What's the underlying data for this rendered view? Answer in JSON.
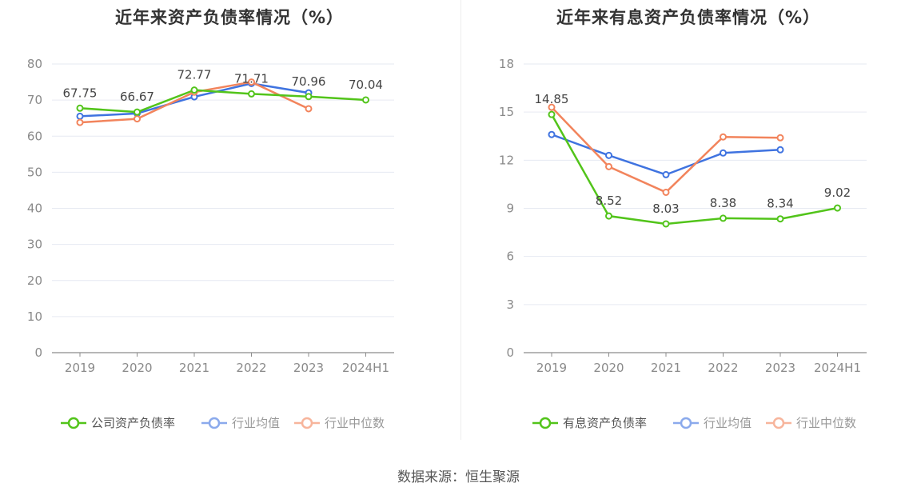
{
  "source": "数据来源：恒生聚源",
  "chart_data": [
    {
      "type": "line",
      "title": "近年来资产负债率情况（%）",
      "categories": [
        "2019",
        "2020",
        "2021",
        "2022",
        "2023",
        "2024H1"
      ],
      "ylim": [
        0,
        80
      ],
      "yticks": [
        0,
        10,
        20,
        30,
        40,
        50,
        60,
        70,
        80
      ],
      "grid": true,
      "legend_position": "bottom",
      "series": [
        {
          "name": "公司资产负债率",
          "color": "#52c41a",
          "values": [
            67.75,
            66.67,
            72.77,
            71.71,
            70.96,
            70.04
          ],
          "labels": [
            "67.75",
            "66.67",
            "72.77",
            "71.71",
            "70.96",
            "70.04"
          ]
        },
        {
          "name": "行业均值",
          "color": "#3f73e0",
          "values": [
            65.5,
            66.3,
            70.9,
            74.6,
            72.0,
            null
          ]
        },
        {
          "name": "行业中位数",
          "color": "#f2845c",
          "values": [
            63.8,
            64.8,
            72.2,
            75.0,
            67.6,
            null
          ]
        }
      ]
    },
    {
      "type": "line",
      "title": "近年来有息资产负债率情况（%）",
      "categories": [
        "2019",
        "2020",
        "2021",
        "2022",
        "2023",
        "2024H1"
      ],
      "ylim": [
        0,
        18
      ],
      "yticks": [
        0,
        3,
        6,
        9,
        12,
        15,
        18
      ],
      "grid": true,
      "legend_position": "bottom",
      "series": [
        {
          "name": "有息资产负债率",
          "color": "#52c41a",
          "values": [
            14.85,
            8.52,
            8.03,
            8.38,
            8.34,
            9.02
          ],
          "labels": [
            "14.85",
            "8.52",
            "8.03",
            "8.38",
            "8.34",
            "9.02"
          ]
        },
        {
          "name": "行业均值",
          "color": "#3f73e0",
          "values": [
            13.6,
            12.3,
            11.1,
            12.45,
            12.65,
            null
          ]
        },
        {
          "name": "行业中位数",
          "color": "#f2845c",
          "values": [
            15.3,
            11.6,
            10.0,
            13.45,
            13.4,
            null
          ]
        }
      ]
    }
  ]
}
